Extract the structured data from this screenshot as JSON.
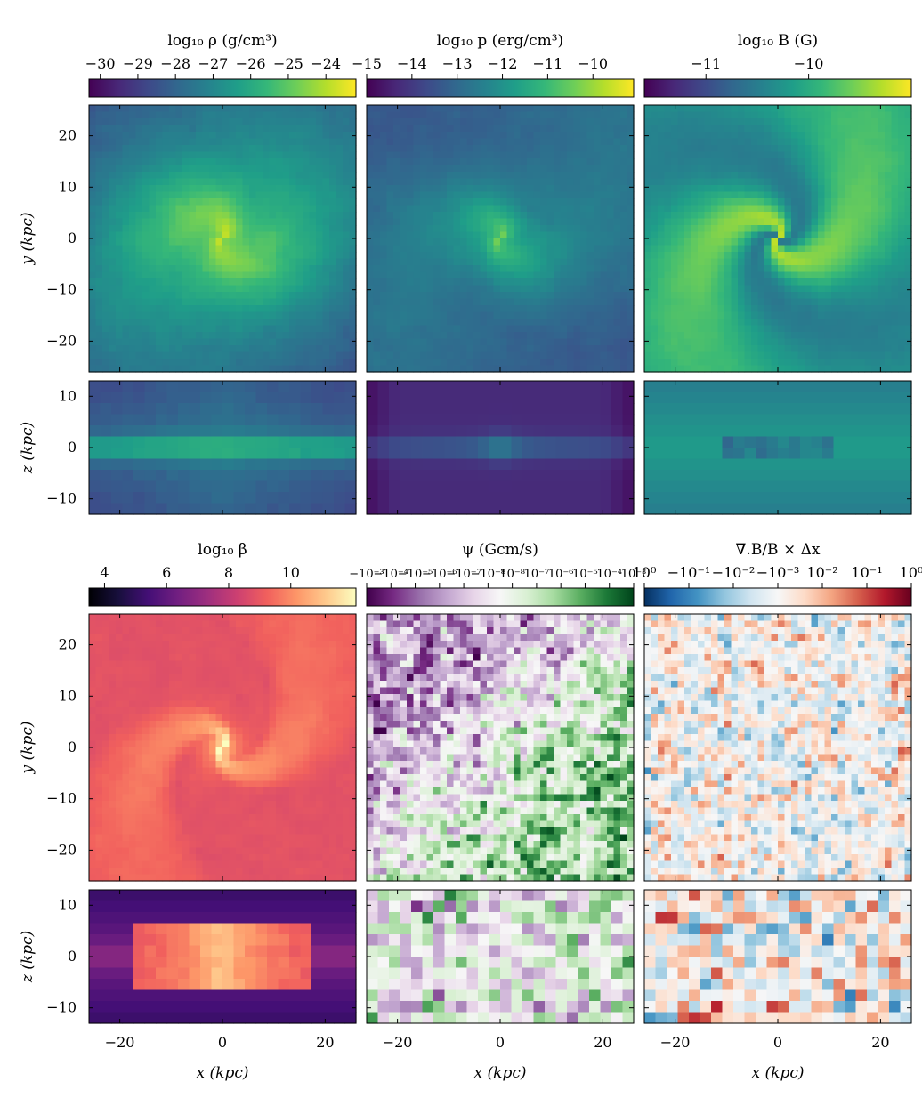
{
  "chart_data": {
    "type": "heatmap",
    "colorbars": [
      {
        "label": "log₁₀ ρ (g/cm³)",
        "cmap": "viridis",
        "ticks": [
          "−30",
          "−29",
          "−28",
          "−27",
          "−26",
          "−25",
          "−24"
        ],
        "range": [
          -30.3,
          -23.2
        ]
      },
      {
        "label": "log₁₀ p (erg/cm³)",
        "cmap": "viridis",
        "ticks": [
          "−15",
          "−14",
          "−13",
          "−12",
          "−11",
          "−10"
        ],
        "range": [
          -15.0,
          -9.1
        ]
      },
      {
        "label": "log₁₀ B (G)",
        "cmap": "viridis",
        "ticks": [
          "−11",
          "−10"
        ],
        "range": [
          -11.6,
          -9.0
        ]
      },
      {
        "label": "log₁₀ β",
        "cmap": "magma",
        "ticks": [
          "4",
          "6",
          "8",
          "10"
        ],
        "range": [
          3.5,
          12.1
        ]
      },
      {
        "label": "ψ (Gcm/s)",
        "cmap": "PRGn",
        "ticks": [
          "−10⁻³",
          "−10⁻⁴",
          "−10⁻⁵",
          "−10⁻⁶",
          "−10⁻⁷",
          "−10⁻⁸",
          "10⁻⁸",
          "10⁻⁷",
          "10⁻⁶",
          "10⁻⁵",
          "10⁻⁴",
          "10⁻³"
        ],
        "scale": "symlog"
      },
      {
        "label": "∇.B/B × Δx",
        "cmap": "RdBu_r",
        "ticks": [
          "10⁰",
          "−10⁻¹",
          "−10⁻²",
          "−10⁻³",
          "10⁻²",
          "10⁻¹",
          "10⁰"
        ],
        "scale": "symlog"
      }
    ],
    "xlabel": "x (kpc)",
    "ylabel_face": "y (kpc)",
    "ylabel_edge": "z (kpc)",
    "x_ticks": [
      "−20",
      "0",
      "20"
    ],
    "y_ticks_face": [
      "20",
      "10",
      "0",
      "−10",
      "−20"
    ],
    "y_ticks_edge": [
      "10",
      "0",
      "−10"
    ],
    "xlim": [
      -26,
      26
    ],
    "ylim_face": [
      -26,
      26
    ],
    "ylim_edge": [
      -13,
      13
    ]
  }
}
